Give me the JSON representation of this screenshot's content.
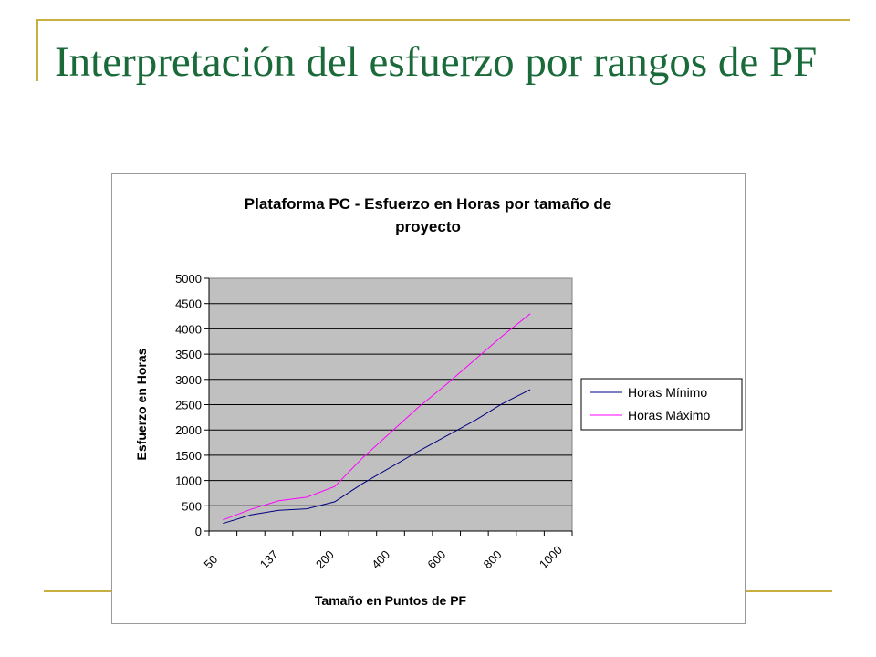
{
  "slide": {
    "title": "Interpretación del esfuerzo por rangos de PF"
  },
  "colors": {
    "title": "#1a6a3a",
    "decoration": "#c8b040",
    "plot_background": "#c0c0c0",
    "series_min": "#000080",
    "series_max": "#ff00ff"
  },
  "chart_data": {
    "type": "line",
    "title_lines": [
      "Plataforma PC - Esfuerzo en Horas por tamaño de",
      "proyecto"
    ],
    "xlabel": "Tamaño en Puntos de PF",
    "ylabel": "Esfuerzo en Horas",
    "x_tick_labels": [
      "50",
      "137",
      "200",
      "400",
      "600",
      "800",
      "1000"
    ],
    "y_ticks": [
      0,
      500,
      1000,
      1500,
      2000,
      2500,
      3000,
      3500,
      4000,
      4500,
      5000
    ],
    "ylim": [
      0,
      5000
    ],
    "grid": "horizontal",
    "legend_position": "right",
    "series": [
      {
        "name": "Horas Mínimo",
        "color": "#000080",
        "values": [
          150,
          320,
          410,
          440,
          580,
          940,
          1260,
          1580,
          1880,
          2180,
          2520,
          2800
        ]
      },
      {
        "name": "Horas Máximo",
        "color": "#ff00ff",
        "values": [
          220,
          430,
          600,
          670,
          880,
          1450,
          1950,
          2450,
          2900,
          3380,
          3860,
          4300
        ]
      }
    ]
  }
}
